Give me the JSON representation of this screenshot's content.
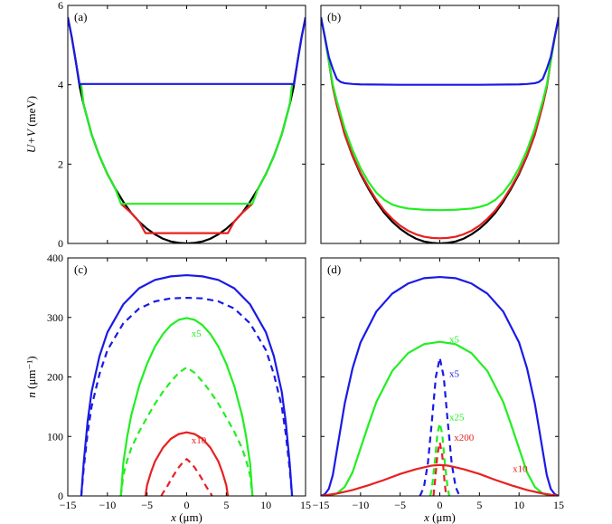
{
  "chart_data": [
    {
      "id": "a",
      "type": "line",
      "panel_label": "(a)",
      "ylabel": "U+V (meV)",
      "xlim": [
        -15,
        15
      ],
      "ylim": [
        0,
        6
      ],
      "xticks": [
        -15,
        -10,
        -5,
        0,
        5,
        10,
        15
      ],
      "yticks": [
        0,
        2,
        4,
        6
      ],
      "show_x_ticklabels": false,
      "show_y_ticklabels": true,
      "series": [
        {
          "color": "#000000",
          "style": "solid",
          "x": [
            -15,
            -14.5,
            -14,
            -13.5,
            -13,
            -12,
            -11,
            -10,
            -9,
            -8,
            -7,
            -6,
            -5,
            -4,
            -3,
            -2,
            -1,
            0,
            1,
            2,
            3,
            4,
            5,
            6,
            7,
            8,
            9,
            10,
            11,
            12,
            13,
            13.5,
            14,
            14.5,
            15
          ],
          "y": [
            5.7,
            5.2,
            4.6,
            3.95,
            3.5,
            2.75,
            2.2,
            1.75,
            1.38,
            1.05,
            0.77,
            0.55,
            0.37,
            0.23,
            0.12,
            0.05,
            0.015,
            0,
            0.015,
            0.05,
            0.12,
            0.23,
            0.37,
            0.55,
            0.77,
            1.05,
            1.38,
            1.75,
            2.2,
            2.75,
            3.5,
            3.95,
            4.6,
            5.2,
            5.7
          ]
        },
        {
          "color": "#e82020",
          "style": "solid",
          "x": [
            -8.3,
            -7,
            -6,
            -5.2,
            5.2,
            6,
            7,
            8.3
          ],
          "y": [
            1.0,
            0.77,
            0.55,
            0.26,
            0.26,
            0.55,
            0.77,
            1.0
          ]
        },
        {
          "color": "#22ee22",
          "style": "solid",
          "x": [
            -13.3,
            -13,
            -12,
            -11,
            -10,
            -9,
            -8.3,
            8.3,
            9,
            10,
            11,
            12,
            13,
            13.3
          ],
          "y": [
            4.0,
            3.5,
            2.75,
            2.2,
            1.75,
            1.38,
            1.0,
            1.0,
            1.38,
            1.75,
            2.2,
            2.75,
            3.5,
            4.0
          ]
        },
        {
          "color": "#1a1ae6",
          "style": "solid",
          "x": [
            -15,
            -14.5,
            -14,
            -13.5,
            -13.3,
            13.3,
            13.5,
            14,
            14.5,
            15
          ],
          "y": [
            5.7,
            5.2,
            4.6,
            4.0,
            4.02,
            4.02,
            4.0,
            4.6,
            5.2,
            5.7
          ]
        }
      ]
    },
    {
      "id": "b",
      "type": "line",
      "panel_label": "(b)",
      "xlim": [
        -15,
        15
      ],
      "ylim": [
        0,
        6
      ],
      "xticks": [
        -15,
        -10,
        -5,
        0,
        5,
        10,
        15
      ],
      "yticks": [
        0,
        2,
        4,
        6
      ],
      "show_x_ticklabels": false,
      "show_y_ticklabels": false,
      "series": [
        {
          "color": "#000000",
          "style": "solid",
          "x": [
            -15,
            -14.5,
            -14,
            -13.5,
            -13,
            -12,
            -11,
            -10,
            -9,
            -8,
            -7,
            -6,
            -5,
            -4,
            -3,
            -2,
            -1,
            0,
            1,
            2,
            3,
            4,
            5,
            6,
            7,
            8,
            9,
            10,
            11,
            12,
            13,
            13.5,
            14,
            14.5,
            15
          ],
          "y": [
            5.7,
            5.2,
            4.6,
            3.95,
            3.5,
            2.75,
            2.2,
            1.75,
            1.38,
            1.05,
            0.77,
            0.55,
            0.37,
            0.23,
            0.12,
            0.05,
            0.015,
            0,
            0.015,
            0.05,
            0.12,
            0.23,
            0.37,
            0.55,
            0.77,
            1.05,
            1.38,
            1.75,
            2.2,
            2.75,
            3.5,
            3.95,
            4.6,
            5.2,
            5.7
          ]
        },
        {
          "color": "#e82020",
          "style": "solid",
          "x": [
            -15,
            -14.5,
            -14,
            -13.5,
            -13,
            -12,
            -11,
            -10,
            -9,
            -8,
            -7,
            -6,
            -5,
            -4,
            -3,
            -2,
            -1,
            0,
            1,
            2,
            3,
            4,
            5,
            6,
            7,
            8,
            9,
            10,
            11,
            12,
            13,
            13.5,
            14,
            14.5,
            15
          ],
          "y": [
            5.7,
            5.2,
            4.6,
            3.95,
            3.5,
            2.76,
            2.22,
            1.78,
            1.42,
            1.1,
            0.83,
            0.62,
            0.45,
            0.32,
            0.23,
            0.17,
            0.14,
            0.13,
            0.14,
            0.17,
            0.23,
            0.32,
            0.45,
            0.62,
            0.83,
            1.1,
            1.42,
            1.78,
            2.22,
            2.76,
            3.5,
            3.95,
            4.6,
            5.2,
            5.7
          ]
        },
        {
          "color": "#22ee22",
          "style": "solid",
          "x": [
            -15,
            -14.5,
            -14,
            -13.5,
            -13,
            -12,
            -11,
            -10,
            -9,
            -8,
            -7,
            -6,
            -5,
            -4,
            -2,
            0,
            2,
            4,
            5,
            6,
            7,
            8,
            9,
            10,
            11,
            12,
            13,
            13.5,
            14,
            14.5,
            15
          ],
          "y": [
            5.7,
            5.2,
            4.6,
            4.0,
            3.6,
            2.9,
            2.35,
            1.9,
            1.55,
            1.28,
            1.1,
            0.98,
            0.92,
            0.88,
            0.85,
            0.84,
            0.85,
            0.88,
            0.92,
            0.98,
            1.1,
            1.28,
            1.55,
            1.9,
            2.35,
            2.9,
            3.6,
            4.0,
            4.6,
            5.2,
            5.7
          ]
        },
        {
          "color": "#1a1ae6",
          "style": "solid",
          "x": [
            -15,
            -14.5,
            -14,
            -13.5,
            -13,
            -12.5,
            -12,
            -11,
            -10,
            -5,
            0,
            5,
            10,
            11,
            12,
            12.5,
            13,
            13.5,
            14,
            14.5,
            15
          ],
          "y": [
            5.7,
            5.2,
            4.7,
            4.4,
            4.15,
            4.07,
            4.04,
            4.02,
            4.01,
            4.0,
            4.0,
            4.0,
            4.01,
            4.02,
            4.04,
            4.07,
            4.15,
            4.4,
            4.7,
            5.2,
            5.7
          ]
        }
      ]
    },
    {
      "id": "c",
      "type": "line",
      "panel_label": "(c)",
      "ylabel": "n (μm⁻¹)",
      "xlabel": "x (μm)",
      "xlim": [
        -15,
        15
      ],
      "ylim": [
        0,
        400
      ],
      "xticks": [
        -15,
        -10,
        -5,
        0,
        5,
        10,
        15
      ],
      "yticks": [
        0,
        100,
        200,
        300,
        400
      ],
      "show_x_ticklabels": true,
      "show_y_ticklabels": true,
      "series": [
        {
          "color": "#1a1ae6",
          "style": "solid",
          "x": [
            -13.3,
            -13,
            -12.5,
            -12,
            -11,
            -10,
            -8,
            -6,
            -4,
            -2,
            0,
            2,
            4,
            6,
            8,
            10,
            11,
            12,
            12.5,
            13,
            13.3
          ],
          "y": [
            0,
            55,
            125,
            175,
            235,
            275,
            322,
            349,
            363,
            369,
            371,
            369,
            363,
            349,
            322,
            275,
            235,
            175,
            125,
            55,
            0
          ]
        },
        {
          "color": "#1a1ae6",
          "style": "dashed",
          "x": [
            -13.3,
            -13,
            -12.5,
            -12,
            -11,
            -10,
            -8,
            -6,
            -4,
            -2,
            0,
            2,
            4,
            6,
            8,
            10,
            11,
            12,
            12.5,
            13,
            13.3
          ],
          "y": [
            0,
            45,
            105,
            150,
            205,
            245,
            290,
            315,
            327,
            332,
            333,
            332,
            327,
            315,
            290,
            245,
            205,
            150,
            105,
            45,
            0
          ]
        },
        {
          "color": "#22ee22",
          "style": "solid",
          "x": [
            -8.3,
            -8,
            -7.5,
            -7,
            -6,
            -5,
            -4,
            -3,
            -2,
            -1,
            0,
            1,
            2,
            3,
            4,
            5,
            6,
            7,
            7.5,
            8,
            8.3
          ],
          "y": [
            0,
            55,
            100,
            135,
            185,
            222,
            251,
            272,
            287,
            296,
            299,
            296,
            287,
            272,
            251,
            222,
            185,
            135,
            100,
            55,
            0
          ]
        },
        {
          "color": "#22ee22",
          "style": "dashed",
          "x": [
            -8.3,
            -8,
            -7.5,
            -7,
            -6,
            -5,
            -4,
            -3,
            -2,
            -1,
            0,
            1,
            2,
            3,
            4,
            5,
            6,
            7,
            7.5,
            8,
            8.3
          ],
          "y": [
            0,
            35,
            60,
            80,
            108,
            132,
            155,
            175,
            192,
            207,
            216,
            207,
            192,
            175,
            155,
            132,
            108,
            80,
            60,
            35,
            0
          ]
        },
        {
          "color": "#e82020",
          "style": "solid",
          "x": [
            -5.2,
            -5,
            -4.5,
            -4,
            -3,
            -2,
            -1,
            0,
            1,
            2,
            3,
            4,
            4.5,
            5,
            5.2
          ],
          "y": [
            0,
            18,
            40,
            58,
            81,
            96,
            104,
            107,
            104,
            96,
            81,
            58,
            40,
            18,
            0
          ]
        },
        {
          "color": "#e82020",
          "style": "dashed",
          "x": [
            -3.2,
            -3,
            -2.5,
            -2,
            -1.5,
            -1,
            -0.5,
            0,
            0.5,
            1,
            1.5,
            2,
            2.5,
            3,
            3.2
          ],
          "y": [
            0,
            5,
            15,
            27,
            38,
            48,
            56,
            62,
            56,
            48,
            38,
            27,
            15,
            5,
            0
          ]
        }
      ],
      "annotations": [
        {
          "text": "x5",
          "color": "#22ee22",
          "x": 0.6,
          "y": 268
        },
        {
          "text": "x10",
          "color": "#e82020",
          "x": 0.6,
          "y": 88
        }
      ]
    },
    {
      "id": "d",
      "type": "line",
      "panel_label": "(d)",
      "xlabel": "x (μm)",
      "xlim": [
        -15,
        15
      ],
      "ylim": [
        0,
        400
      ],
      "xticks": [
        -15,
        -10,
        -5,
        0,
        5,
        10,
        15
      ],
      "yticks": [
        0,
        100,
        200,
        300,
        400
      ],
      "show_x_ticklabels": true,
      "show_y_ticklabels": false,
      "series": [
        {
          "color": "#1a1ae6",
          "style": "solid",
          "x": [
            -15,
            -14.5,
            -14,
            -13.5,
            -13,
            -12,
            -11,
            -10,
            -8,
            -6,
            -4,
            -2,
            0,
            2,
            4,
            6,
            8,
            10,
            11,
            12,
            13,
            13.5,
            14,
            14.5,
            15
          ],
          "y": [
            0,
            3,
            12,
            35,
            75,
            155,
            215,
            258,
            310,
            340,
            357,
            366,
            368,
            366,
            357,
            340,
            310,
            258,
            215,
            155,
            75,
            35,
            12,
            3,
            0
          ]
        },
        {
          "color": "#1a1ae6",
          "style": "dashed",
          "x": [
            -2.5,
            -2,
            -1.5,
            -1,
            -0.5,
            0,
            0.5,
            1,
            1.5,
            2,
            2.5
          ],
          "y": [
            0,
            15,
            55,
            125,
            200,
            232,
            200,
            125,
            55,
            15,
            0
          ]
        },
        {
          "color": "#22ee22",
          "style": "solid",
          "x": [
            -14,
            -13,
            -12,
            -11,
            -10,
            -9,
            -8,
            -6,
            -4,
            -2,
            0,
            2,
            4,
            6,
            8,
            9,
            10,
            11,
            12,
            13,
            14
          ],
          "y": [
            0,
            4,
            15,
            40,
            80,
            120,
            158,
            210,
            240,
            255,
            259,
            255,
            240,
            210,
            158,
            120,
            80,
            40,
            15,
            4,
            0
          ]
        },
        {
          "color": "#22ee22",
          "style": "dashed",
          "x": [
            -1.2,
            -1,
            -0.6,
            -0.3,
            0,
            0.3,
            0.6,
            1,
            1.2
          ],
          "y": [
            0,
            12,
            60,
            105,
            122,
            105,
            60,
            12,
            0
          ]
        },
        {
          "color": "#e82020",
          "style": "solid",
          "x": [
            -15,
            -13,
            -11,
            -9,
            -7,
            -5,
            -3,
            -1,
            0,
            1,
            3,
            5,
            7,
            9,
            11,
            13,
            15
          ],
          "y": [
            0,
            4,
            10,
            18,
            27,
            37,
            45,
            51,
            52,
            51,
            45,
            37,
            27,
            18,
            10,
            4,
            0
          ]
        },
        {
          "color": "#e82020",
          "style": "dashed",
          "x": [
            -0.8,
            -0.6,
            -0.3,
            0,
            0.3,
            0.6,
            0.8
          ],
          "y": [
            0,
            25,
            70,
            90,
            70,
            25,
            0
          ]
        }
      ],
      "annotations": [
        {
          "text": "x5",
          "color": "#22ee22",
          "x": 1.2,
          "y": 258
        },
        {
          "text": "x5",
          "color": "#1a1ae6",
          "x": 1.2,
          "y": 200
        },
        {
          "text": "x25",
          "color": "#22ee22",
          "x": 1.2,
          "y": 127
        },
        {
          "text": "x200",
          "color": "#e82020",
          "x": 1.8,
          "y": 93
        },
        {
          "text": "x10",
          "color": "#e82020",
          "x": 9.2,
          "y": 40
        }
      ]
    }
  ]
}
